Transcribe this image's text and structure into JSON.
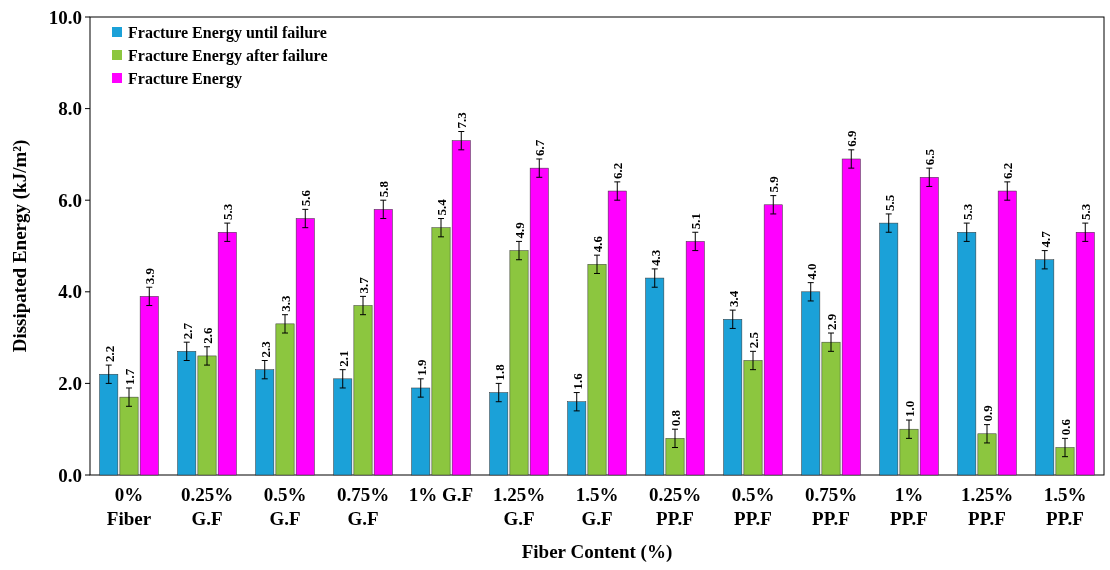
{
  "chart_data": {
    "type": "bar",
    "xlabel": "Fiber Content (%)",
    "ylabel": "Dissipated Energy (kJ/m²)",
    "categories": [
      "0%\nFiber",
      "0.25%\nG.F",
      "0.5%\nG.F",
      "0.75%\nG.F",
      "1% G.F",
      "1.25%\nG.F",
      "1.5%\nG.F",
      "0.25%\nPP.F",
      "0.5%\nPP.F",
      "0.75%\nPP.F",
      "1%\nPP.F",
      "1.25%\nPP.F",
      "1.5%\nPP.F"
    ],
    "series": [
      {
        "name": "Fracture Energy until failure",
        "color": "#1ba1d8",
        "values": [
          2.2,
          2.7,
          2.3,
          2.1,
          1.9,
          1.8,
          1.6,
          4.3,
          3.4,
          4.0,
          5.5,
          5.3,
          4.7
        ],
        "errors": [
          0.2,
          0.2,
          0.2,
          0.2,
          0.2,
          0.2,
          0.2,
          0.2,
          0.2,
          0.2,
          0.2,
          0.2,
          0.2
        ],
        "value_labels": [
          "2.2",
          "2.7",
          "2.3",
          "2.1",
          "1.9",
          "1.8",
          "1.6",
          "4.3",
          "3.4",
          "4.0",
          "5.5",
          "5.3",
          "4.7"
        ]
      },
      {
        "name": "Fracture Energy after failure",
        "color": "#8cc63f",
        "values": [
          1.7,
          2.6,
          3.3,
          3.7,
          5.4,
          4.9,
          4.6,
          0.8,
          2.5,
          2.9,
          1.0,
          0.9,
          0.6
        ],
        "errors": [
          0.2,
          0.2,
          0.2,
          0.2,
          0.2,
          0.2,
          0.2,
          0.2,
          0.2,
          0.2,
          0.2,
          0.2,
          0.2
        ],
        "value_labels": [
          "1.7",
          "2.6",
          "3.3",
          "3.7",
          "5.4",
          "4.9",
          "4.6",
          "0.8",
          "2.5",
          "2.9",
          "1.0",
          "0.9",
          "0.6"
        ]
      },
      {
        "name": "Fracture Energy",
        "color": "#ff00ff",
        "values": [
          3.9,
          5.3,
          5.6,
          5.8,
          7.3,
          6.7,
          6.2,
          5.1,
          5.9,
          6.9,
          6.5,
          6.2,
          5.3
        ],
        "errors": [
          0.2,
          0.2,
          0.2,
          0.2,
          0.2,
          0.2,
          0.2,
          0.2,
          0.2,
          0.2,
          0.2,
          0.2,
          0.2
        ],
        "value_labels": [
          "3.9",
          "5.3",
          "5.6",
          "5.8",
          "7.3",
          "6.7",
          "6.2",
          "5.1",
          "5.9",
          "6.9",
          "6.5",
          "6.2",
          "5.3"
        ]
      }
    ],
    "ylim": [
      0,
      10
    ],
    "yticks": [
      {
        "value": 0,
        "label": "0.0"
      },
      {
        "value": 2,
        "label": "2.0"
      },
      {
        "value": 4,
        "label": "4.0"
      },
      {
        "value": 6,
        "label": "6.0"
      },
      {
        "value": 8,
        "label": "8.0"
      },
      {
        "value": 10,
        "label": "10.0"
      }
    ],
    "legend": "top left"
  }
}
